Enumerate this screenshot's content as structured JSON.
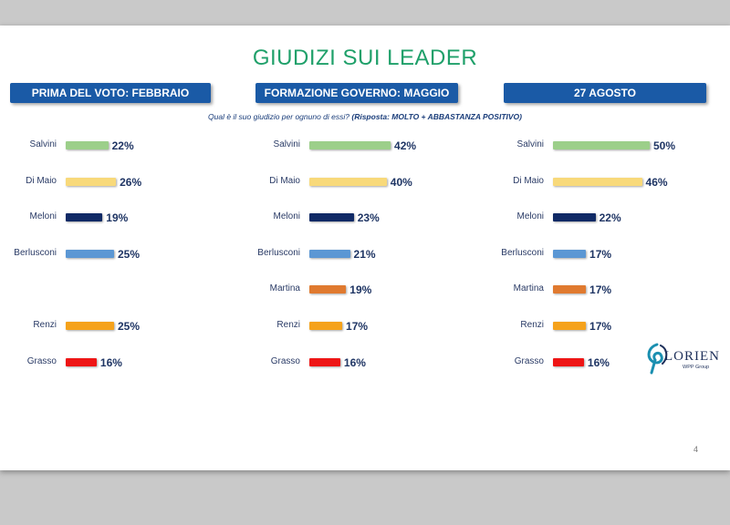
{
  "title": "GIUDIZI SUI LEADER",
  "question": {
    "prefix": "Qual è il suo giudizio per ognuno di essi?",
    "emphasis": "(Risposta: MOLTO + ABBASTANZA POSITIVO)"
  },
  "colors": {
    "Salvini": "#9ccf8a",
    "Di Maio": "#f8d97a",
    "Meloni": "#102a66",
    "Berlusconi": "#5b97d4",
    "Martina": "#e07a2f",
    "Renzi": "#f5a21b",
    "Grasso": "#ee1515"
  },
  "page_number": "4",
  "logo": {
    "name": "LORIEN",
    "sub": "WPP Group"
  },
  "chart_data": [
    {
      "type": "bar",
      "title": "PRIMA DEL VOTO: FEBBRAIO",
      "categories": [
        "Salvini",
        "Di Maio",
        "Meloni",
        "Berlusconi",
        "Renzi",
        "Grasso"
      ],
      "values": [
        22,
        26,
        19,
        25,
        25,
        16
      ],
      "labels": [
        "22%",
        "26%",
        "19%",
        "25%",
        "25%",
        "16%"
      ]
    },
    {
      "type": "bar",
      "title": "FORMAZIONE GOVERNO: MAGGIO",
      "categories": [
        "Salvini",
        "Di Maio",
        "Meloni",
        "Berlusconi",
        "Martina",
        "Renzi",
        "Grasso"
      ],
      "values": [
        42,
        40,
        23,
        21,
        19,
        17,
        16
      ],
      "labels": [
        "42%",
        "40%",
        "23%",
        "21%",
        "19%",
        "17%",
        "16%"
      ]
    },
    {
      "type": "bar",
      "title": "27 AGOSTO",
      "categories": [
        "Salvini",
        "Di Maio",
        "Meloni",
        "Berlusconi",
        "Martina",
        "Renzi",
        "Grasso"
      ],
      "values": [
        50,
        46,
        22,
        17,
        17,
        17,
        16
      ],
      "labels": [
        "50%",
        "46%",
        "22%",
        "17%",
        "17%",
        "17%",
        "16%"
      ]
    }
  ]
}
